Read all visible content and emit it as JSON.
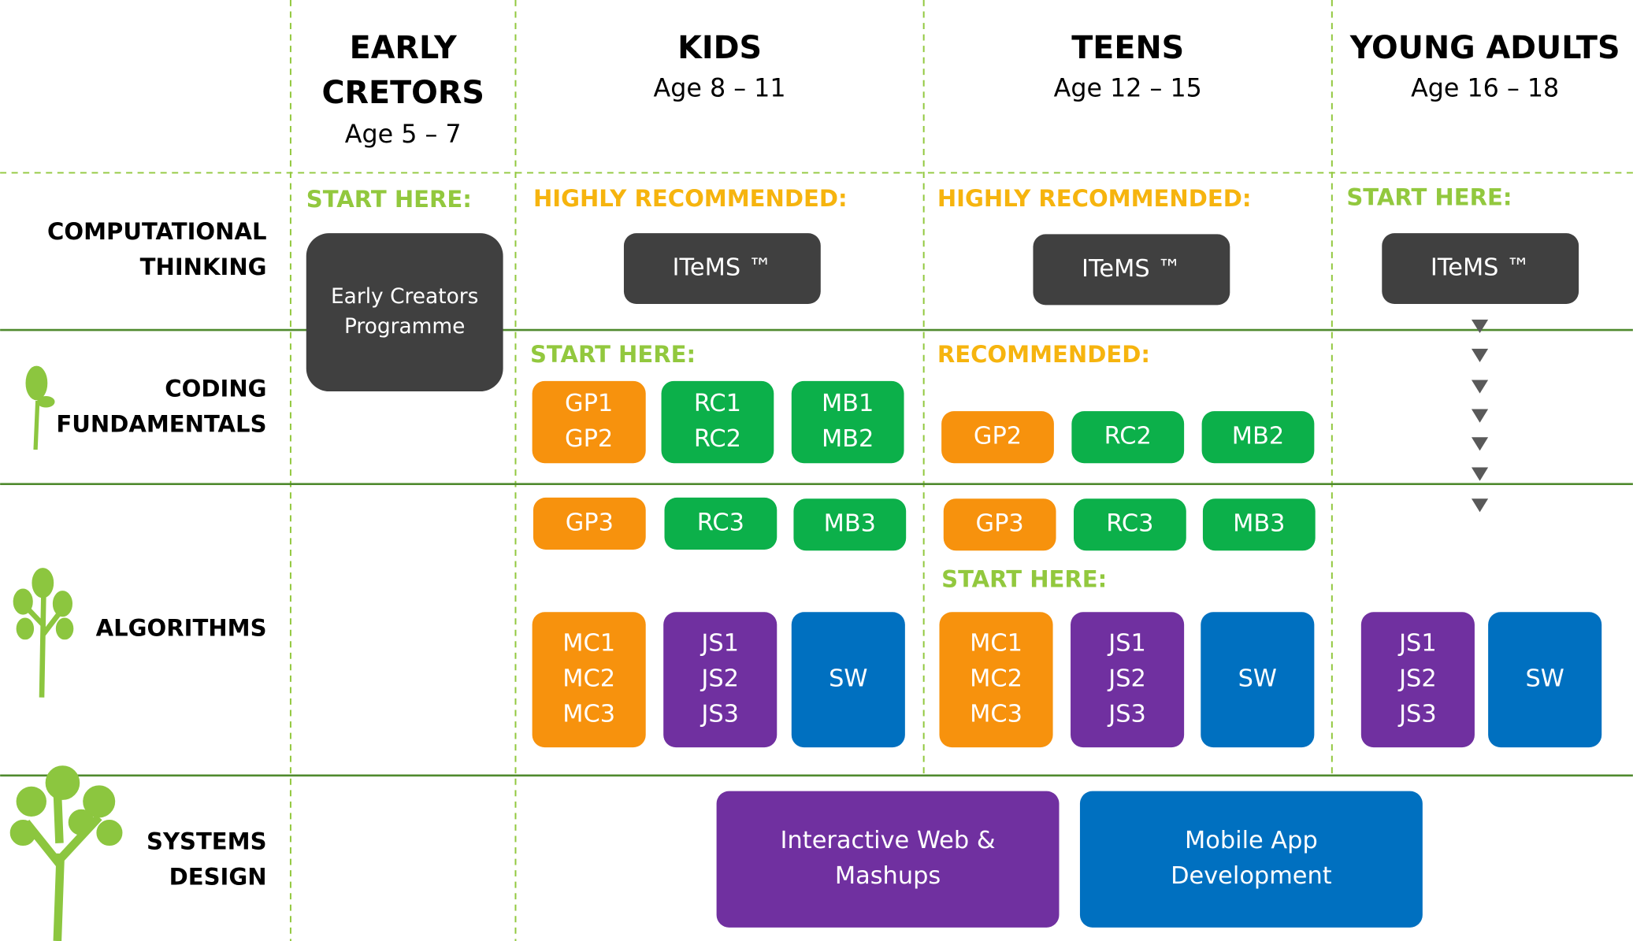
{
  "columns": [
    {
      "lines": [
        "EARLY",
        "CRETORS"
      ],
      "subtitle": "Age 5 – 7"
    },
    {
      "lines": [
        "KIDS"
      ],
      "subtitle": "Age 8 – 11"
    },
    {
      "lines": [
        "TEENS"
      ],
      "subtitle": "Age 12 – 15"
    },
    {
      "lines": [
        "YOUNG ADULTS"
      ],
      "subtitle": "Age 16 – 18"
    }
  ],
  "rows": [
    {
      "lines": [
        "COMPUTATIONAL",
        "THINKING"
      ]
    },
    {
      "lines": [
        "CODING",
        "FUNDAMENTALS"
      ]
    },
    {
      "lines": [
        "ALGORITHMS"
      ]
    },
    {
      "lines": [
        "SYSTEMS",
        "DESIGN"
      ]
    }
  ],
  "notes": [
    {
      "text": "START HERE:",
      "color": "#92c83e"
    },
    {
      "text": "HIGHLY RECOMMENDED:",
      "color": "#f6b40e"
    },
    {
      "text": "HIGHLY RECOMMENDED:",
      "color": "#f6b40e"
    },
    {
      "text": "START HERE:",
      "color": "#92c83e"
    },
    {
      "text": "START HERE:",
      "color": "#92c83e"
    },
    {
      "text": "RECOMMENDED:",
      "color": "#f6b40e"
    },
    {
      "text": "START HERE:",
      "color": "#92c83e"
    }
  ],
  "boxes": [
    {
      "lines": [
        "Early Creators",
        "Programme"
      ],
      "color": "#404040"
    },
    {
      "lines": [
        "ITeMS ™"
      ],
      "color": "#404040"
    },
    {
      "lines": [
        "ITeMS ™"
      ],
      "color": "#404040"
    },
    {
      "lines": [
        "ITeMS ™"
      ],
      "color": "#404040"
    },
    {
      "lines": [
        "GP1",
        "GP2"
      ],
      "color": "#f7920d"
    },
    {
      "lines": [
        "RC1",
        "RC2"
      ],
      "color": "#0cb04a"
    },
    {
      "lines": [
        "MB1",
        "MB2"
      ],
      "color": "#0cb04a"
    },
    {
      "lines": [
        "GP2"
      ],
      "color": "#f7920d"
    },
    {
      "lines": [
        "RC2"
      ],
      "color": "#0cb04a"
    },
    {
      "lines": [
        "MB2"
      ],
      "color": "#0cb04a"
    },
    {
      "lines": [
        "GP3"
      ],
      "color": "#f7920d"
    },
    {
      "lines": [
        "RC3"
      ],
      "color": "#0cb04a"
    },
    {
      "lines": [
        "MB3"
      ],
      "color": "#0cb04a"
    },
    {
      "lines": [
        "GP3"
      ],
      "color": "#f7920d"
    },
    {
      "lines": [
        "RC3"
      ],
      "color": "#0cb04a"
    },
    {
      "lines": [
        "MB3"
      ],
      "color": "#0cb04a"
    },
    {
      "lines": [
        "MC1",
        "MC2",
        "MC3"
      ],
      "color": "#f7920d"
    },
    {
      "lines": [
        "JS1",
        "JS2",
        "JS3"
      ],
      "color": "#7030a0"
    },
    {
      "lines": [
        "SW"
      ],
      "color": "#0070c0"
    },
    {
      "lines": [
        "MC1",
        "MC2",
        "MC3"
      ],
      "color": "#f7920d"
    },
    {
      "lines": [
        "JS1",
        "JS2",
        "JS3"
      ],
      "color": "#7030a0"
    },
    {
      "lines": [
        "SW"
      ],
      "color": "#0070c0"
    },
    {
      "lines": [
        "JS1",
        "JS2",
        "JS3"
      ],
      "color": "#7030a0"
    },
    {
      "lines": [
        "SW"
      ],
      "color": "#0070c0"
    },
    {
      "lines": [
        "Interactive Web &",
        "Mashups"
      ],
      "color": "#7030a0"
    },
    {
      "lines": [
        "Mobile App",
        "Development"
      ],
      "color": "#0070c0"
    }
  ]
}
